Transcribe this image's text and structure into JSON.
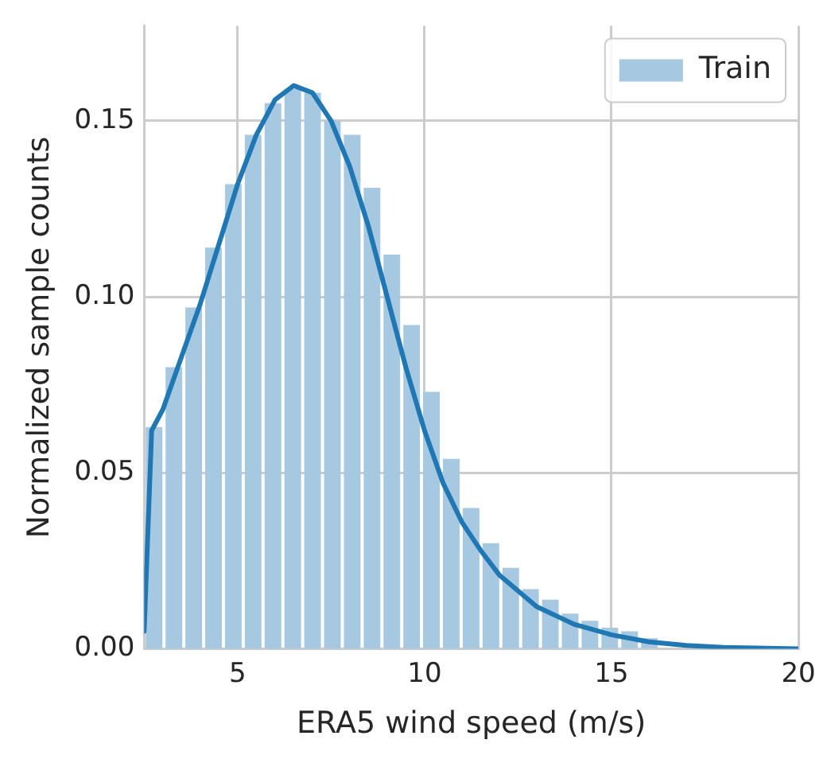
{
  "chart_data": {
    "type": "histogram",
    "xlabel": "ERA5 wind speed (m/s)",
    "ylabel": "Normalized sample counts",
    "bins": [
      2.5,
      3.03,
      3.56,
      4.09,
      4.62,
      5.15,
      5.68,
      6.21,
      6.74,
      7.27,
      7.8,
      8.33,
      8.86,
      9.39,
      9.92,
      10.45,
      10.98,
      11.51,
      12.04,
      12.57,
      13.1,
      13.63,
      14.16,
      14.69,
      15.22,
      15.75,
      16.28,
      16.81,
      17.34,
      17.87,
      18.4,
      18.93,
      19.46,
      19.99
    ],
    "series": [
      {
        "name": "Train",
        "color": "#a6c8e1",
        "values": [
          0.063,
          0.08,
          0.097,
          0.114,
          0.132,
          0.146,
          0.155,
          0.159,
          0.158,
          0.15,
          0.146,
          0.131,
          0.112,
          0.092,
          0.073,
          0.054,
          0.04,
          0.03,
          0.023,
          0.017,
          0.014,
          0.01,
          0.008,
          0.006,
          0.005,
          0.003,
          null,
          null,
          null,
          null,
          null,
          null,
          null
        ]
      },
      {
        "type": "line",
        "color": "#1f77b4",
        "x": [
          2.5,
          2.7,
          3,
          3.5,
          4,
          4.5,
          5,
          5.5,
          6,
          6.5,
          7,
          7.5,
          8,
          8.5,
          9,
          9.5,
          10,
          10.5,
          11,
          11.5,
          12,
          13,
          14,
          15,
          16,
          17,
          18,
          20
        ],
        "values": [
          0.005,
          0.062,
          0.068,
          0.083,
          0.098,
          0.115,
          0.132,
          0.146,
          0.156,
          0.16,
          0.158,
          0.15,
          0.137,
          0.12,
          0.1,
          0.08,
          0.062,
          0.047,
          0.036,
          0.028,
          0.021,
          0.012,
          0.007,
          0.004,
          0.002,
          0.001,
          0.0004,
          0
        ]
      }
    ],
    "xlim": [
      2.5,
      20
    ],
    "xticks": [
      5,
      10,
      15,
      20
    ],
    "ylim": [
      0,
      0.177
    ],
    "yticks": [
      {
        "value": 0,
        "label": "0.00"
      },
      {
        "value": 0.05,
        "label": "0.05"
      },
      {
        "value": 0.1,
        "label": "0.10"
      },
      {
        "value": 0.15,
        "label": "0.15"
      }
    ],
    "grid": true,
    "legend": "top right"
  }
}
